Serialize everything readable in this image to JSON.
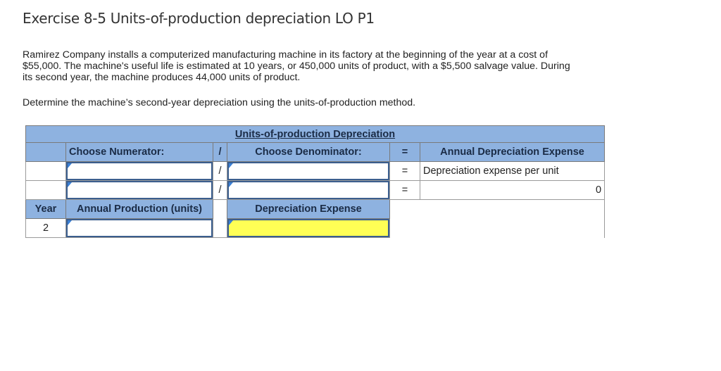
{
  "title": "Exercise 8-5 Units-of-production depreciation LO P1",
  "paragraph": "Ramirez Company installs a computerized manufacturing machine in its factory at the beginning of the year at a cost of $55,000. The machine's useful life is estimated at 10 years, or 450,000 units of product, with a $5,500 salvage value. During its second year, the machine produces 44,000 units of product.",
  "task": "Determine the machine’s second-year depreciation using the units-of-production method.",
  "table": {
    "header": "Units-of-production Depreciation",
    "numerator_label": "Choose Numerator:",
    "divide_symbol": "/",
    "denominator_label": "Choose Denominator:",
    "equals_symbol": "=",
    "result_label": "Annual Depreciation Expense",
    "row1": {
      "numerator": "",
      "denominator": "",
      "result": "Depreciation expense per unit"
    },
    "row2": {
      "numerator": "",
      "denominator": "",
      "result": "0"
    },
    "year_label": "Year",
    "annual_production_label": "Annual Production (units)",
    "depreciation_expense_label": "Depreciation Expense",
    "year_value": "2",
    "annual_production_value": "",
    "depreciation_expense_value": ""
  }
}
